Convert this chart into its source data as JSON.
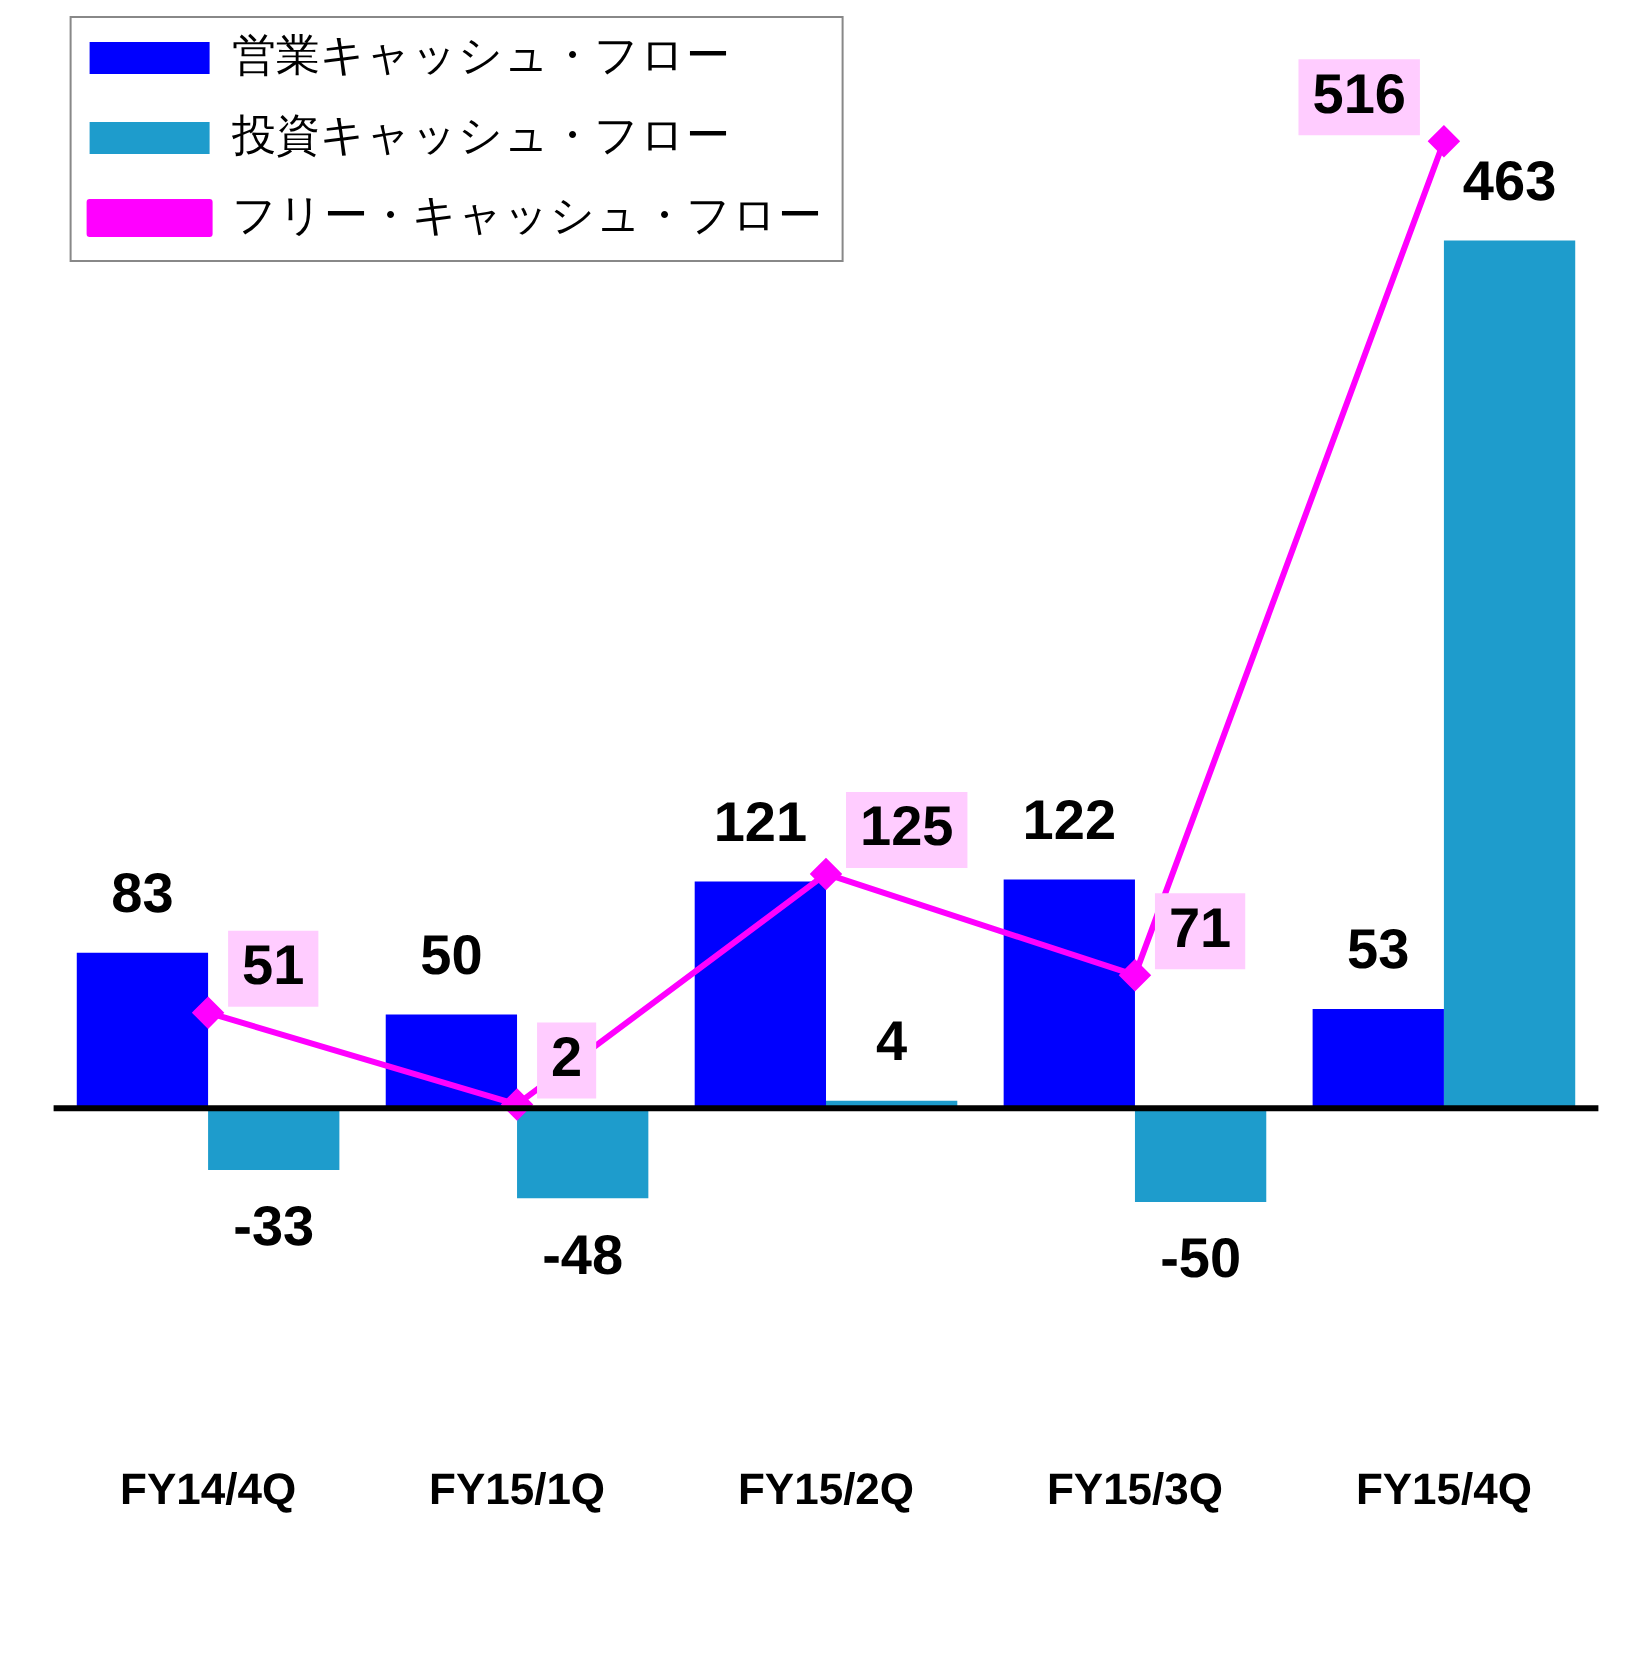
{
  "chart_data": {
    "type": "bar",
    "categories": [
      "FY14/4Q",
      "FY15/1Q",
      "FY15/2Q",
      "FY15/3Q",
      "FY15/4Q"
    ],
    "series": [
      {
        "name": "営業キャッシュ・フロー",
        "color": "#0000ff",
        "values": [
          83,
          50,
          121,
          122,
          53
        ]
      },
      {
        "name": "投資キャッシュ・フロー",
        "color": "#1e9ccc",
        "values": [
          -33,
          -48,
          4,
          -50,
          463
        ]
      },
      {
        "name": "フリー・キャッシュ・フロー",
        "type": "line",
        "color": "#ff00ff",
        "values": [
          51,
          2,
          125,
          71,
          516
        ],
        "marker": "diamond"
      }
    ],
    "data_labels": true,
    "grid": false,
    "legend": "top left",
    "tick_labels": "x"
  }
}
